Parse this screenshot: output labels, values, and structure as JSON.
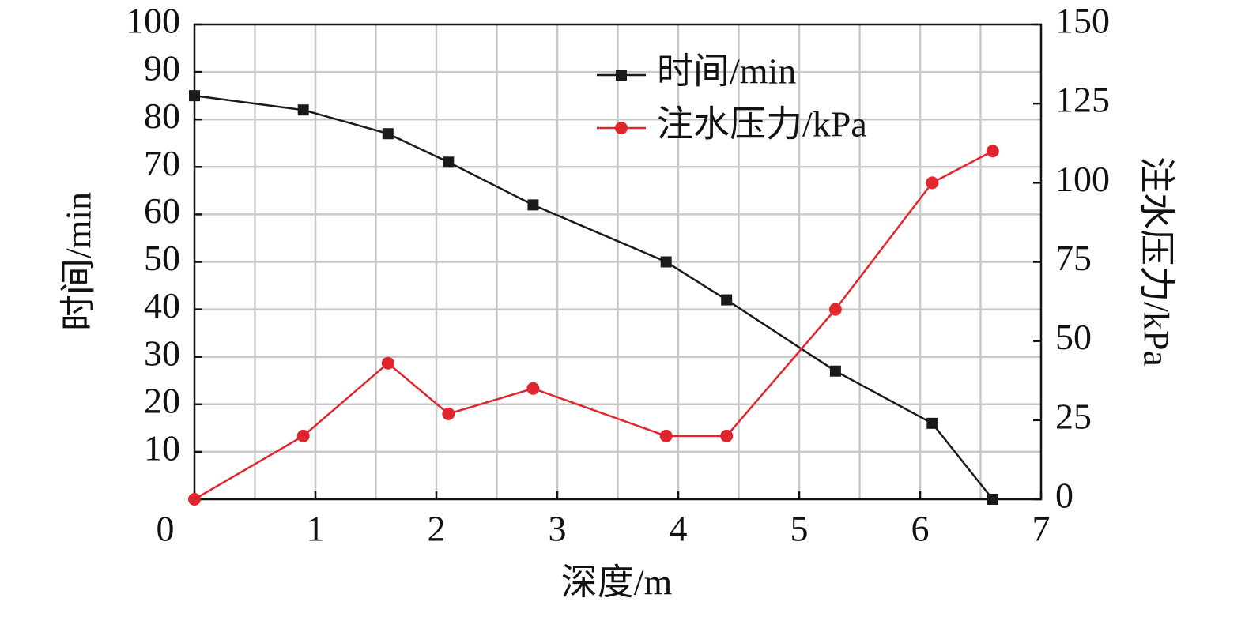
{
  "chart_data": {
    "type": "line",
    "x_label": "深度/m",
    "y_label": "时间/min",
    "y2_label": "注水压力/kPa",
    "x": [
      0,
      0.9,
      1.6,
      2.1,
      2.8,
      3.9,
      4.4,
      5.3,
      6.1,
      6.6
    ],
    "series": [
      {
        "name": "时间/min",
        "color": "#1a1a1a",
        "marker": "square",
        "values": [
          85,
          82,
          77,
          71,
          62,
          50,
          42,
          27,
          16,
          0
        ]
      },
      {
        "name": "注水压力/kPa",
        "color": "#e0262c",
        "marker": "circle",
        "axis": "y2",
        "values": [
          0,
          20,
          43,
          27,
          35,
          20,
          20,
          60,
          100,
          110
        ]
      }
    ],
    "xlim": [
      0,
      7
    ],
    "xticks": [
      0,
      1,
      2,
      3,
      4,
      5,
      6,
      7
    ],
    "ylim": [
      0,
      100
    ],
    "yticks": [
      10,
      20,
      30,
      40,
      50,
      60,
      70,
      80,
      90,
      100
    ],
    "y2lim": [
      0,
      150
    ],
    "y2ticks": [
      0,
      25,
      50,
      75,
      100,
      125,
      150
    ],
    "grid": true,
    "legend": "upper-right"
  }
}
